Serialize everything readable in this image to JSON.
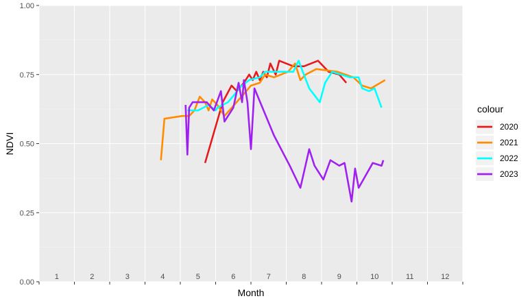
{
  "chart_data": {
    "type": "line",
    "xlabel": "Month",
    "ylabel": "NDVI",
    "ylim": [
      0,
      1
    ],
    "y_ticks": [
      "0.00",
      "0.25",
      "0.50",
      "0.75",
      "1.00"
    ],
    "x_ticks": [
      "1",
      "2",
      "3",
      "4",
      "5",
      "6",
      "7",
      "8",
      "9",
      "10",
      "11",
      "12"
    ],
    "grid": true,
    "background": "#ebebeb",
    "legend": {
      "title": "colour",
      "position": "right"
    },
    "series": [
      {
        "name": "2020",
        "color": "#e41a1c",
        "points": [
          [
            5.2,
            0.43
          ],
          [
            5.7,
            0.65
          ],
          [
            5.95,
            0.71
          ],
          [
            6.1,
            0.69
          ],
          [
            6.3,
            0.72
          ],
          [
            6.45,
            0.75
          ],
          [
            6.55,
            0.73
          ],
          [
            6.65,
            0.76
          ],
          [
            6.75,
            0.73
          ],
          [
            6.85,
            0.76
          ],
          [
            6.95,
            0.74
          ],
          [
            7.05,
            0.79
          ],
          [
            7.2,
            0.75
          ],
          [
            7.3,
            0.8
          ],
          [
            7.7,
            0.78
          ],
          [
            8.0,
            0.78
          ],
          [
            8.4,
            0.8
          ],
          [
            8.7,
            0.76
          ],
          [
            9.0,
            0.75
          ],
          [
            9.2,
            0.72
          ]
        ]
      },
      {
        "name": "2021",
        "color": "#ff8c00",
        "points": [
          [
            3.95,
            0.44
          ],
          [
            4.05,
            0.59
          ],
          [
            4.55,
            0.6
          ],
          [
            4.75,
            0.6
          ],
          [
            4.9,
            0.62
          ],
          [
            5.05,
            0.67
          ],
          [
            5.2,
            0.65
          ],
          [
            5.3,
            0.62
          ],
          [
            5.4,
            0.66
          ],
          [
            5.55,
            0.64
          ],
          [
            5.75,
            0.6
          ],
          [
            6.3,
            0.68
          ],
          [
            6.5,
            0.71
          ],
          [
            6.75,
            0.72
          ],
          [
            6.9,
            0.75
          ],
          [
            7.15,
            0.74
          ],
          [
            7.55,
            0.76
          ],
          [
            7.75,
            0.79
          ],
          [
            7.9,
            0.73
          ],
          [
            8.05,
            0.75
          ],
          [
            8.35,
            0.77
          ],
          [
            8.95,
            0.76
          ],
          [
            9.4,
            0.74
          ],
          [
            9.65,
            0.71
          ],
          [
            9.9,
            0.7
          ],
          [
            10.3,
            0.73
          ]
        ]
      },
      {
        "name": "2022",
        "color": "#00ffff",
        "points": [
          [
            4.7,
            0.62
          ],
          [
            5.0,
            0.62
          ],
          [
            5.3,
            0.64
          ],
          [
            5.5,
            0.62
          ],
          [
            5.55,
            0.63
          ],
          [
            5.85,
            0.65
          ],
          [
            6.05,
            0.68
          ],
          [
            6.15,
            0.7
          ],
          [
            6.35,
            0.72
          ],
          [
            6.45,
            0.73
          ],
          [
            6.75,
            0.74
          ],
          [
            6.9,
            0.76
          ],
          [
            7.55,
            0.76
          ],
          [
            7.7,
            0.76
          ],
          [
            7.85,
            0.8
          ],
          [
            8.15,
            0.7
          ],
          [
            8.45,
            0.65
          ],
          [
            8.6,
            0.72
          ],
          [
            8.8,
            0.76
          ],
          [
            9.3,
            0.74
          ],
          [
            9.55,
            0.74
          ],
          [
            9.65,
            0.7
          ],
          [
            9.85,
            0.69
          ],
          [
            10.0,
            0.7
          ],
          [
            10.2,
            0.63
          ]
        ]
      },
      {
        "name": "2023",
        "color": "#a020f0",
        "points": [
          [
            4.65,
            0.64
          ],
          [
            4.7,
            0.46
          ],
          [
            4.75,
            0.63
          ],
          [
            4.85,
            0.65
          ],
          [
            5.25,
            0.65
          ],
          [
            5.45,
            0.62
          ],
          [
            5.65,
            0.69
          ],
          [
            5.75,
            0.58
          ],
          [
            6.0,
            0.63
          ],
          [
            6.15,
            0.72
          ],
          [
            6.25,
            0.65
          ],
          [
            6.3,
            0.73
          ],
          [
            6.4,
            0.65
          ],
          [
            6.5,
            0.48
          ],
          [
            6.6,
            0.7
          ],
          [
            7.15,
            0.53
          ],
          [
            7.6,
            0.42
          ],
          [
            7.9,
            0.34
          ],
          [
            8.15,
            0.48
          ],
          [
            8.3,
            0.42
          ],
          [
            8.55,
            0.37
          ],
          [
            8.75,
            0.44
          ],
          [
            9.0,
            0.42
          ],
          [
            9.15,
            0.43
          ],
          [
            9.35,
            0.29
          ],
          [
            9.45,
            0.41
          ],
          [
            9.55,
            0.34
          ],
          [
            9.95,
            0.43
          ],
          [
            10.2,
            0.42
          ],
          [
            10.25,
            0.44
          ]
        ]
      }
    ]
  }
}
